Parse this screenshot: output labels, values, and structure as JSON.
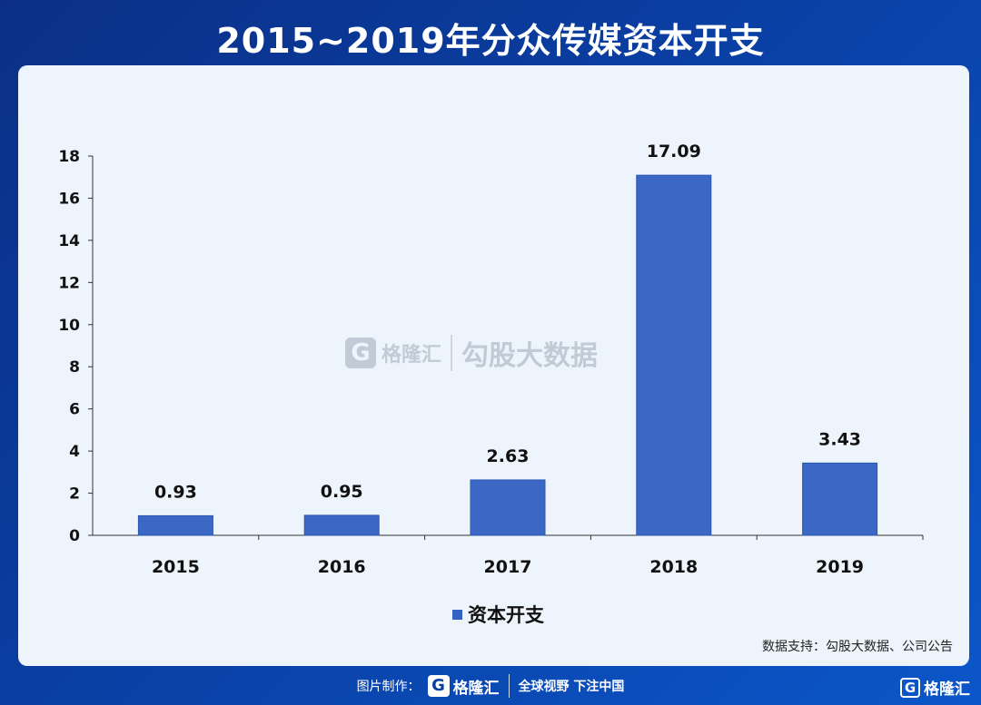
{
  "header": {
    "title": "2015~2019年分众传媒资本开支"
  },
  "watermark": {
    "logo": "G",
    "brand": "格隆汇",
    "text": "勾股大数据"
  },
  "footer": {
    "label": "图片制作：",
    "logo": "G",
    "brand": "格隆汇",
    "slogan": "全球视野 下注中国"
  },
  "corner": {
    "logo": "G",
    "brand": "格隆汇"
  },
  "source": "数据支持：勾股大数据、公司公告",
  "colors": {
    "bar": "#3a68c4",
    "barEdge": "#2c57b0",
    "background": "#0b3fa3",
    "panel": "#eef4fb"
  },
  "chart_data": {
    "type": "bar",
    "categories": [
      "2015",
      "2016",
      "2017",
      "2018",
      "2019"
    ],
    "series": [
      {
        "name": "资本开支",
        "values": [
          0.93,
          0.95,
          2.63,
          17.09,
          3.43
        ]
      }
    ],
    "data_labels": [
      "0.93",
      "0.95",
      "2.63",
      "17.09",
      "3.43"
    ],
    "ylim": [
      0,
      18
    ],
    "yticks": [
      0,
      2,
      4,
      6,
      8,
      10,
      12,
      14,
      16,
      18
    ],
    "legend": "bottom",
    "grid": false
  }
}
